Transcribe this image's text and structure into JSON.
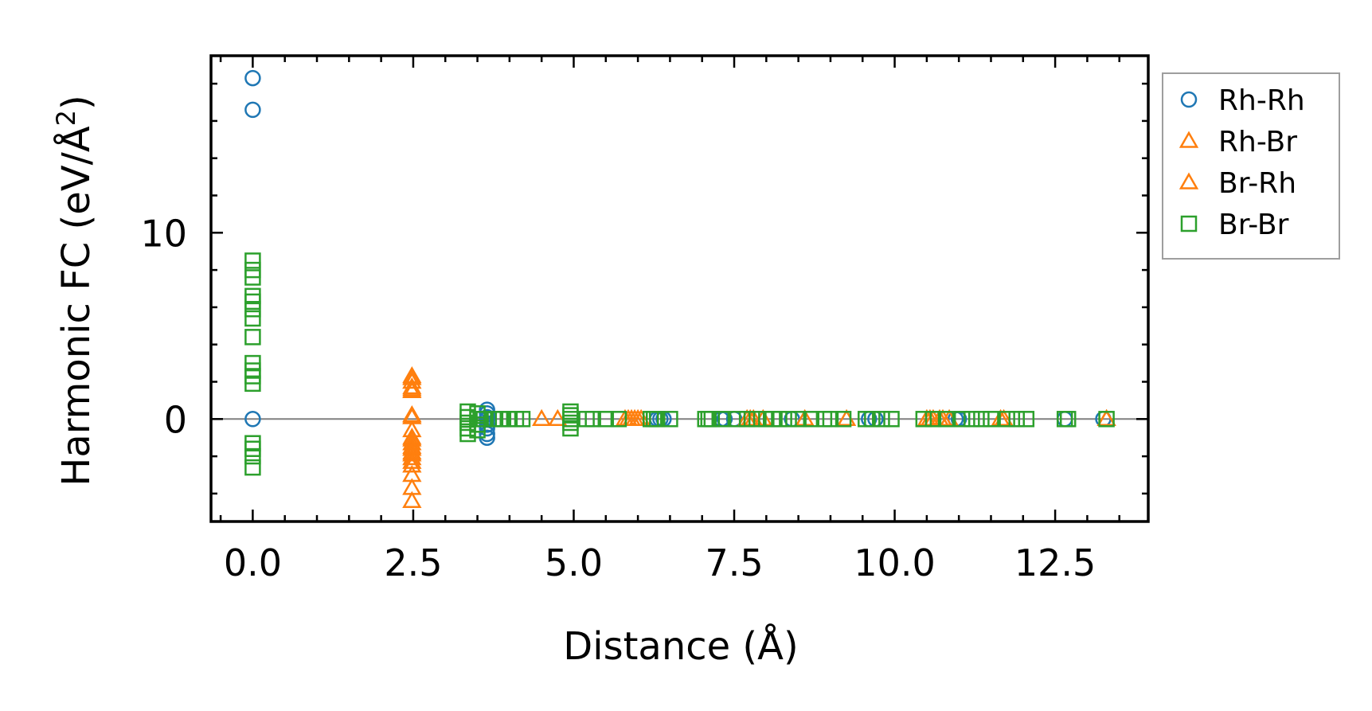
{
  "chart_data": {
    "type": "scatter",
    "xlabel": "Distance (Å)",
    "ylabel_parts": {
      "main": "Harmonic FC (eV/Å",
      "sup": "2",
      "close": ")"
    },
    "xlim": [
      -0.65,
      13.95
    ],
    "ylim": [
      -5.5,
      19.5
    ],
    "x_ticks": [
      0.0,
      2.5,
      5.0,
      7.5,
      10.0,
      12.5
    ],
    "x_tick_labels": [
      "0.0",
      "2.5",
      "5.0",
      "7.5",
      "10.0",
      "12.5"
    ],
    "y_ticks": [
      0,
      10
    ],
    "y_tick_labels": [
      "0",
      "10"
    ],
    "x_minor_step": 0.5,
    "y_minor_step": 2,
    "zero_line": true,
    "legend_position": "outside-right",
    "series": [
      {
        "name": "Rh-Rh",
        "marker": "circle",
        "color": "#1f77b4",
        "x": [
          0.0,
          0.0,
          0.0,
          3.65,
          3.65,
          3.65,
          3.65,
          3.65,
          3.65,
          3.65,
          3.65,
          6.3,
          6.35,
          6.4,
          7.3,
          7.35,
          7.5,
          8.4,
          9.6,
          9.7,
          10.95,
          11.0,
          12.65,
          13.25
        ],
        "y": [
          18.3,
          16.6,
          0.0,
          0.5,
          0.3,
          0.1,
          0.0,
          -0.3,
          -0.5,
          -0.8,
          -1.0,
          0.0,
          0.0,
          0.0,
          0.0,
          0.0,
          0.0,
          0.0,
          0.0,
          0.0,
          0.0,
          0.0,
          0.0,
          0.0
        ]
      },
      {
        "name": "Rh-Br",
        "marker": "triangle",
        "color": "#ff7f0e",
        "x": [
          2.48,
          2.48,
          2.48,
          2.48,
          2.48,
          2.48,
          2.48,
          2.48,
          2.48,
          2.48,
          2.48,
          2.48,
          2.48,
          2.48,
          2.48,
          4.5,
          4.75,
          5.8,
          5.85,
          5.95,
          6.05,
          7.7,
          7.75,
          7.95,
          8.6,
          9.25,
          10.5,
          10.6,
          10.75,
          10.85,
          11.65,
          13.3
        ],
        "y": [
          2.3,
          2.0,
          1.7,
          1.5,
          0.1,
          -0.6,
          -1.0,
          -1.3,
          -1.6,
          -1.9,
          -2.3,
          -3.0,
          -3.7,
          -4.4,
          0.2,
          0.0,
          0.0,
          0.0,
          0.0,
          0.0,
          0.0,
          0.0,
          0.0,
          0.0,
          0.0,
          0.0,
          0.0,
          0.0,
          0.0,
          0.0,
          0.0,
          0.0
        ]
      },
      {
        "name": "Br-Rh",
        "marker": "triangle",
        "color": "#ff7f0e",
        "x": [
          2.48,
          2.48,
          2.48,
          2.48,
          2.48,
          2.48,
          2.48,
          2.48,
          5.9,
          6.0,
          7.8,
          10.55,
          10.7,
          11.7,
          13.3
        ],
        "y": [
          2.2,
          1.6,
          0.2,
          -1.1,
          -1.5,
          -1.8,
          -2.1,
          -2.5,
          0.0,
          0.0,
          0.0,
          0.0,
          0.0,
          0.0,
          0.0
        ]
      },
      {
        "name": "Br-Br",
        "marker": "square",
        "color": "#2ca02c",
        "x": [
          0.0,
          0.0,
          0.0,
          0.0,
          0.0,
          0.0,
          0.0,
          0.0,
          0.0,
          0.0,
          0.0,
          0.0,
          0.0,
          0.0,
          0.0,
          0.0,
          3.35,
          3.35,
          3.35,
          3.35,
          3.35,
          3.5,
          3.5,
          3.5,
          3.5,
          3.55,
          3.6,
          3.75,
          3.85,
          3.9,
          4.0,
          4.1,
          4.2,
          4.95,
          4.95,
          4.95,
          4.95,
          4.95,
          5.2,
          5.3,
          5.5,
          5.7,
          6.2,
          6.25,
          6.3,
          6.5,
          7.05,
          7.1,
          7.15,
          7.3,
          7.55,
          7.7,
          7.85,
          8.0,
          8.1,
          8.2,
          8.35,
          8.5,
          8.7,
          8.9,
          9.0,
          9.2,
          9.55,
          9.65,
          9.8,
          9.95,
          10.45,
          10.6,
          10.8,
          11.05,
          11.2,
          11.35,
          11.5,
          11.75,
          11.9,
          12.05,
          12.65,
          12.7,
          13.3
        ],
        "y": [
          8.5,
          8.0,
          7.6,
          6.6,
          6.3,
          5.9,
          5.4,
          4.4,
          3.0,
          2.6,
          2.3,
          1.9,
          -1.3,
          -1.6,
          -2.0,
          -2.6,
          0.4,
          0.1,
          -0.2,
          -0.5,
          -0.8,
          0.3,
          0.0,
          -0.3,
          -0.6,
          0.0,
          0.0,
          0.0,
          0.0,
          0.0,
          0.0,
          0.0,
          0.0,
          0.4,
          0.2,
          0.0,
          -0.2,
          -0.5,
          0.0,
          0.0,
          0.0,
          0.0,
          0.0,
          0.0,
          0.0,
          0.0,
          0.0,
          0.0,
          0.0,
          0.0,
          0.0,
          0.0,
          0.0,
          0.0,
          0.0,
          0.0,
          0.0,
          0.0,
          0.0,
          0.0,
          0.0,
          0.0,
          0.0,
          0.0,
          0.0,
          0.0,
          0.0,
          0.0,
          0.0,
          0.0,
          0.0,
          0.0,
          0.0,
          0.0,
          0.0,
          0.0,
          0.0,
          0.0,
          0.0
        ]
      }
    ]
  }
}
